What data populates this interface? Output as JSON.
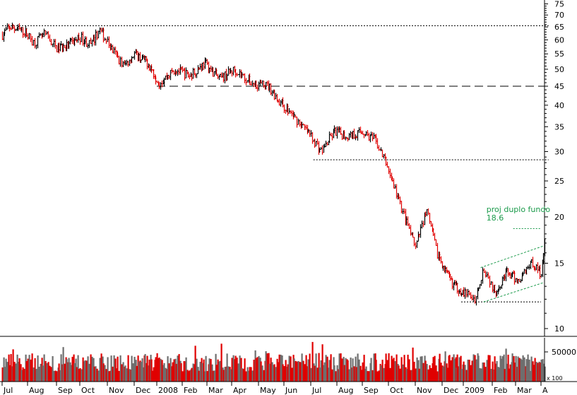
{
  "chart_data": {
    "type": "bar",
    "description_scale": "log",
    "price_axis": {
      "ticks": [
        10,
        15,
        20,
        25,
        30,
        35,
        40,
        45,
        50,
        55,
        60,
        65,
        70,
        75
      ],
      "ylim": [
        10,
        75
      ],
      "scale": "log"
    },
    "volume_axis": {
      "ticks": [
        50000
      ],
      "unit_label": "x 100"
    },
    "x_axis": {
      "labels": [
        "Jul",
        "Aug",
        "Sep",
        "Oct",
        "Nov",
        "Dec",
        "2008",
        "Feb",
        "Mar",
        "Apr",
        "May",
        "Jun",
        "Jul",
        "Aug",
        "Sep",
        "Oct",
        "Nov",
        "Dec",
        "2009",
        "Feb",
        "Mar",
        "A"
      ]
    },
    "price_series": {
      "name": "",
      "months": [
        "2007-07",
        "2007-08",
        "2007-09",
        "2007-10",
        "2007-11",
        "2007-12",
        "2008-01",
        "2008-02",
        "2008-03",
        "2008-04",
        "2008-05",
        "2008-06",
        "2008-07",
        "2008-08",
        "2008-09",
        "2008-10",
        "2008-11",
        "2008-12",
        "2009-01",
        "2009-02",
        "2009-03",
        "2009-04"
      ],
      "anchors": [
        {
          "t": 0.0,
          "v": 62
        },
        {
          "t": 0.3,
          "v": 65
        },
        {
          "t": 0.9,
          "v": 63
        },
        {
          "t": 1.2,
          "v": 59
        },
        {
          "t": 1.6,
          "v": 62
        },
        {
          "t": 2.0,
          "v": 57
        },
        {
          "t": 2.5,
          "v": 58
        },
        {
          "t": 3.0,
          "v": 61
        },
        {
          "t": 3.4,
          "v": 58
        },
        {
          "t": 3.7,
          "v": 64
        },
        {
          "t": 4.2,
          "v": 56
        },
        {
          "t": 4.6,
          "v": 51
        },
        {
          "t": 5.0,
          "v": 55
        },
        {
          "t": 5.6,
          "v": 52
        },
        {
          "t": 6.1,
          "v": 46
        },
        {
          "t": 6.7,
          "v": 50
        },
        {
          "t": 7.3,
          "v": 48
        },
        {
          "t": 7.9,
          "v": 52
        },
        {
          "t": 8.5,
          "v": 47
        },
        {
          "t": 9.1,
          "v": 50
        },
        {
          "t": 9.7,
          "v": 46
        },
        {
          "t": 10.4,
          "v": 45
        },
        {
          "t": 10.8,
          "v": 41
        },
        {
          "t": 11.4,
          "v": 37
        },
        {
          "t": 12.0,
          "v": 33
        },
        {
          "t": 12.4,
          "v": 30
        },
        {
          "t": 12.9,
          "v": 34
        },
        {
          "t": 13.4,
          "v": 33
        },
        {
          "t": 14.0,
          "v": 34
        },
        {
          "t": 14.5,
          "v": 32
        },
        {
          "t": 14.9,
          "v": 28
        },
        {
          "t": 15.3,
          "v": 23
        },
        {
          "t": 15.7,
          "v": 19
        },
        {
          "t": 16.0,
          "v": 16.5
        },
        {
          "t": 16.4,
          "v": 21
        },
        {
          "t": 16.8,
          "v": 16
        },
        {
          "t": 17.2,
          "v": 14
        },
        {
          "t": 17.6,
          "v": 13
        },
        {
          "t": 18.0,
          "v": 12.5
        },
        {
          "t": 18.4,
          "v": 12
        },
        {
          "t": 18.7,
          "v": 14.6
        },
        {
          "t": 19.1,
          "v": 12.5
        },
        {
          "t": 19.6,
          "v": 14.2
        },
        {
          "t": 20.1,
          "v": 13.4
        },
        {
          "t": 20.6,
          "v": 15.2
        },
        {
          "t": 21.0,
          "v": 14
        },
        {
          "t": 21.15,
          "v": 17.8
        }
      ]
    },
    "reference_lines": [
      {
        "style": "dotted",
        "value": 65.5,
        "from_t": 0.0,
        "to_t": 21.3
      },
      {
        "style": "dashed",
        "value": 45,
        "from_t": 6.0,
        "to_t": 21.3
      },
      {
        "style": "dotted",
        "value": 28.5,
        "from_t": 12.1,
        "to_t": 21.3
      },
      {
        "style": "dotted",
        "value": 11.8,
        "from_t": 17.9,
        "to_t": 21.0
      },
      {
        "style": "dotted",
        "value": 18.6,
        "from_t": 19.9,
        "to_t": 21.0
      }
    ],
    "channel_lines": [
      {
        "from_t": 18.6,
        "from_v": 14.6,
        "to_t": 21.1,
        "to_v": 16.7
      },
      {
        "from_t": 18.7,
        "from_v": 11.8,
        "to_t": 21.1,
        "to_v": 13.3
      }
    ],
    "annotation": {
      "lines": [
        "proj duplo fundo",
        "18.6"
      ],
      "at_t": 18.8,
      "at_v": 21.0
    },
    "colors": {
      "up": "#000000",
      "down": "#e00000",
      "vol_up": "#6e6e6e",
      "vol_down": "#e00000",
      "annotation": "#1a9a4a",
      "grid": "#000000"
    },
    "grid": false,
    "legend": "none"
  }
}
